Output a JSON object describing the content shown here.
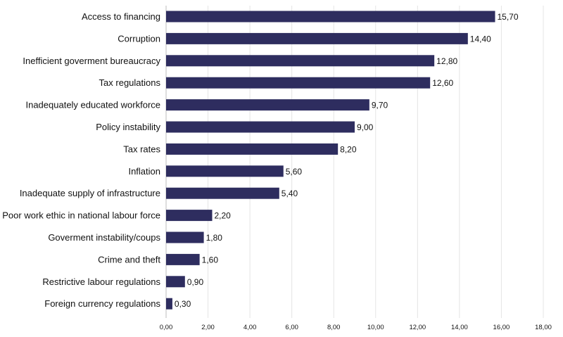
{
  "chart_data": {
    "type": "bar",
    "orientation": "horizontal",
    "categories": [
      "Access to financing",
      "Corruption",
      "Inefficient goverment bureaucracy",
      "Tax regulations",
      "Inadequately educated workforce",
      "Policy instability",
      "Tax rates",
      "Inflation",
      "Inadequate supply of infrastructure",
      "Poor work ethic in national labour force",
      "Goverment instability/coups",
      "Crime and theft",
      "Restrictive labour regulations",
      "Foreign currency regulations"
    ],
    "values": [
      15.7,
      14.4,
      12.8,
      12.6,
      9.7,
      9.0,
      8.2,
      5.6,
      5.4,
      2.2,
      1.8,
      1.6,
      0.9,
      0.3
    ],
    "value_labels": [
      "15,70",
      "14,40",
      "12,80",
      "12,60",
      "9,70",
      "9,00",
      "8,20",
      "5,60",
      "5,40",
      "2,20",
      "1,80",
      "1,60",
      "0,90",
      "0,30"
    ],
    "xlim": [
      0,
      18
    ],
    "xticks": [
      0,
      2,
      4,
      6,
      8,
      10,
      12,
      14,
      16,
      18
    ],
    "xtick_labels": [
      "0,00",
      "2,00",
      "4,00",
      "6,00",
      "8,00",
      "10,00",
      "12,00",
      "14,00",
      "16,00",
      "18,00"
    ],
    "bar_color": "#2e2d5f",
    "grid": true,
    "legend": "none"
  }
}
